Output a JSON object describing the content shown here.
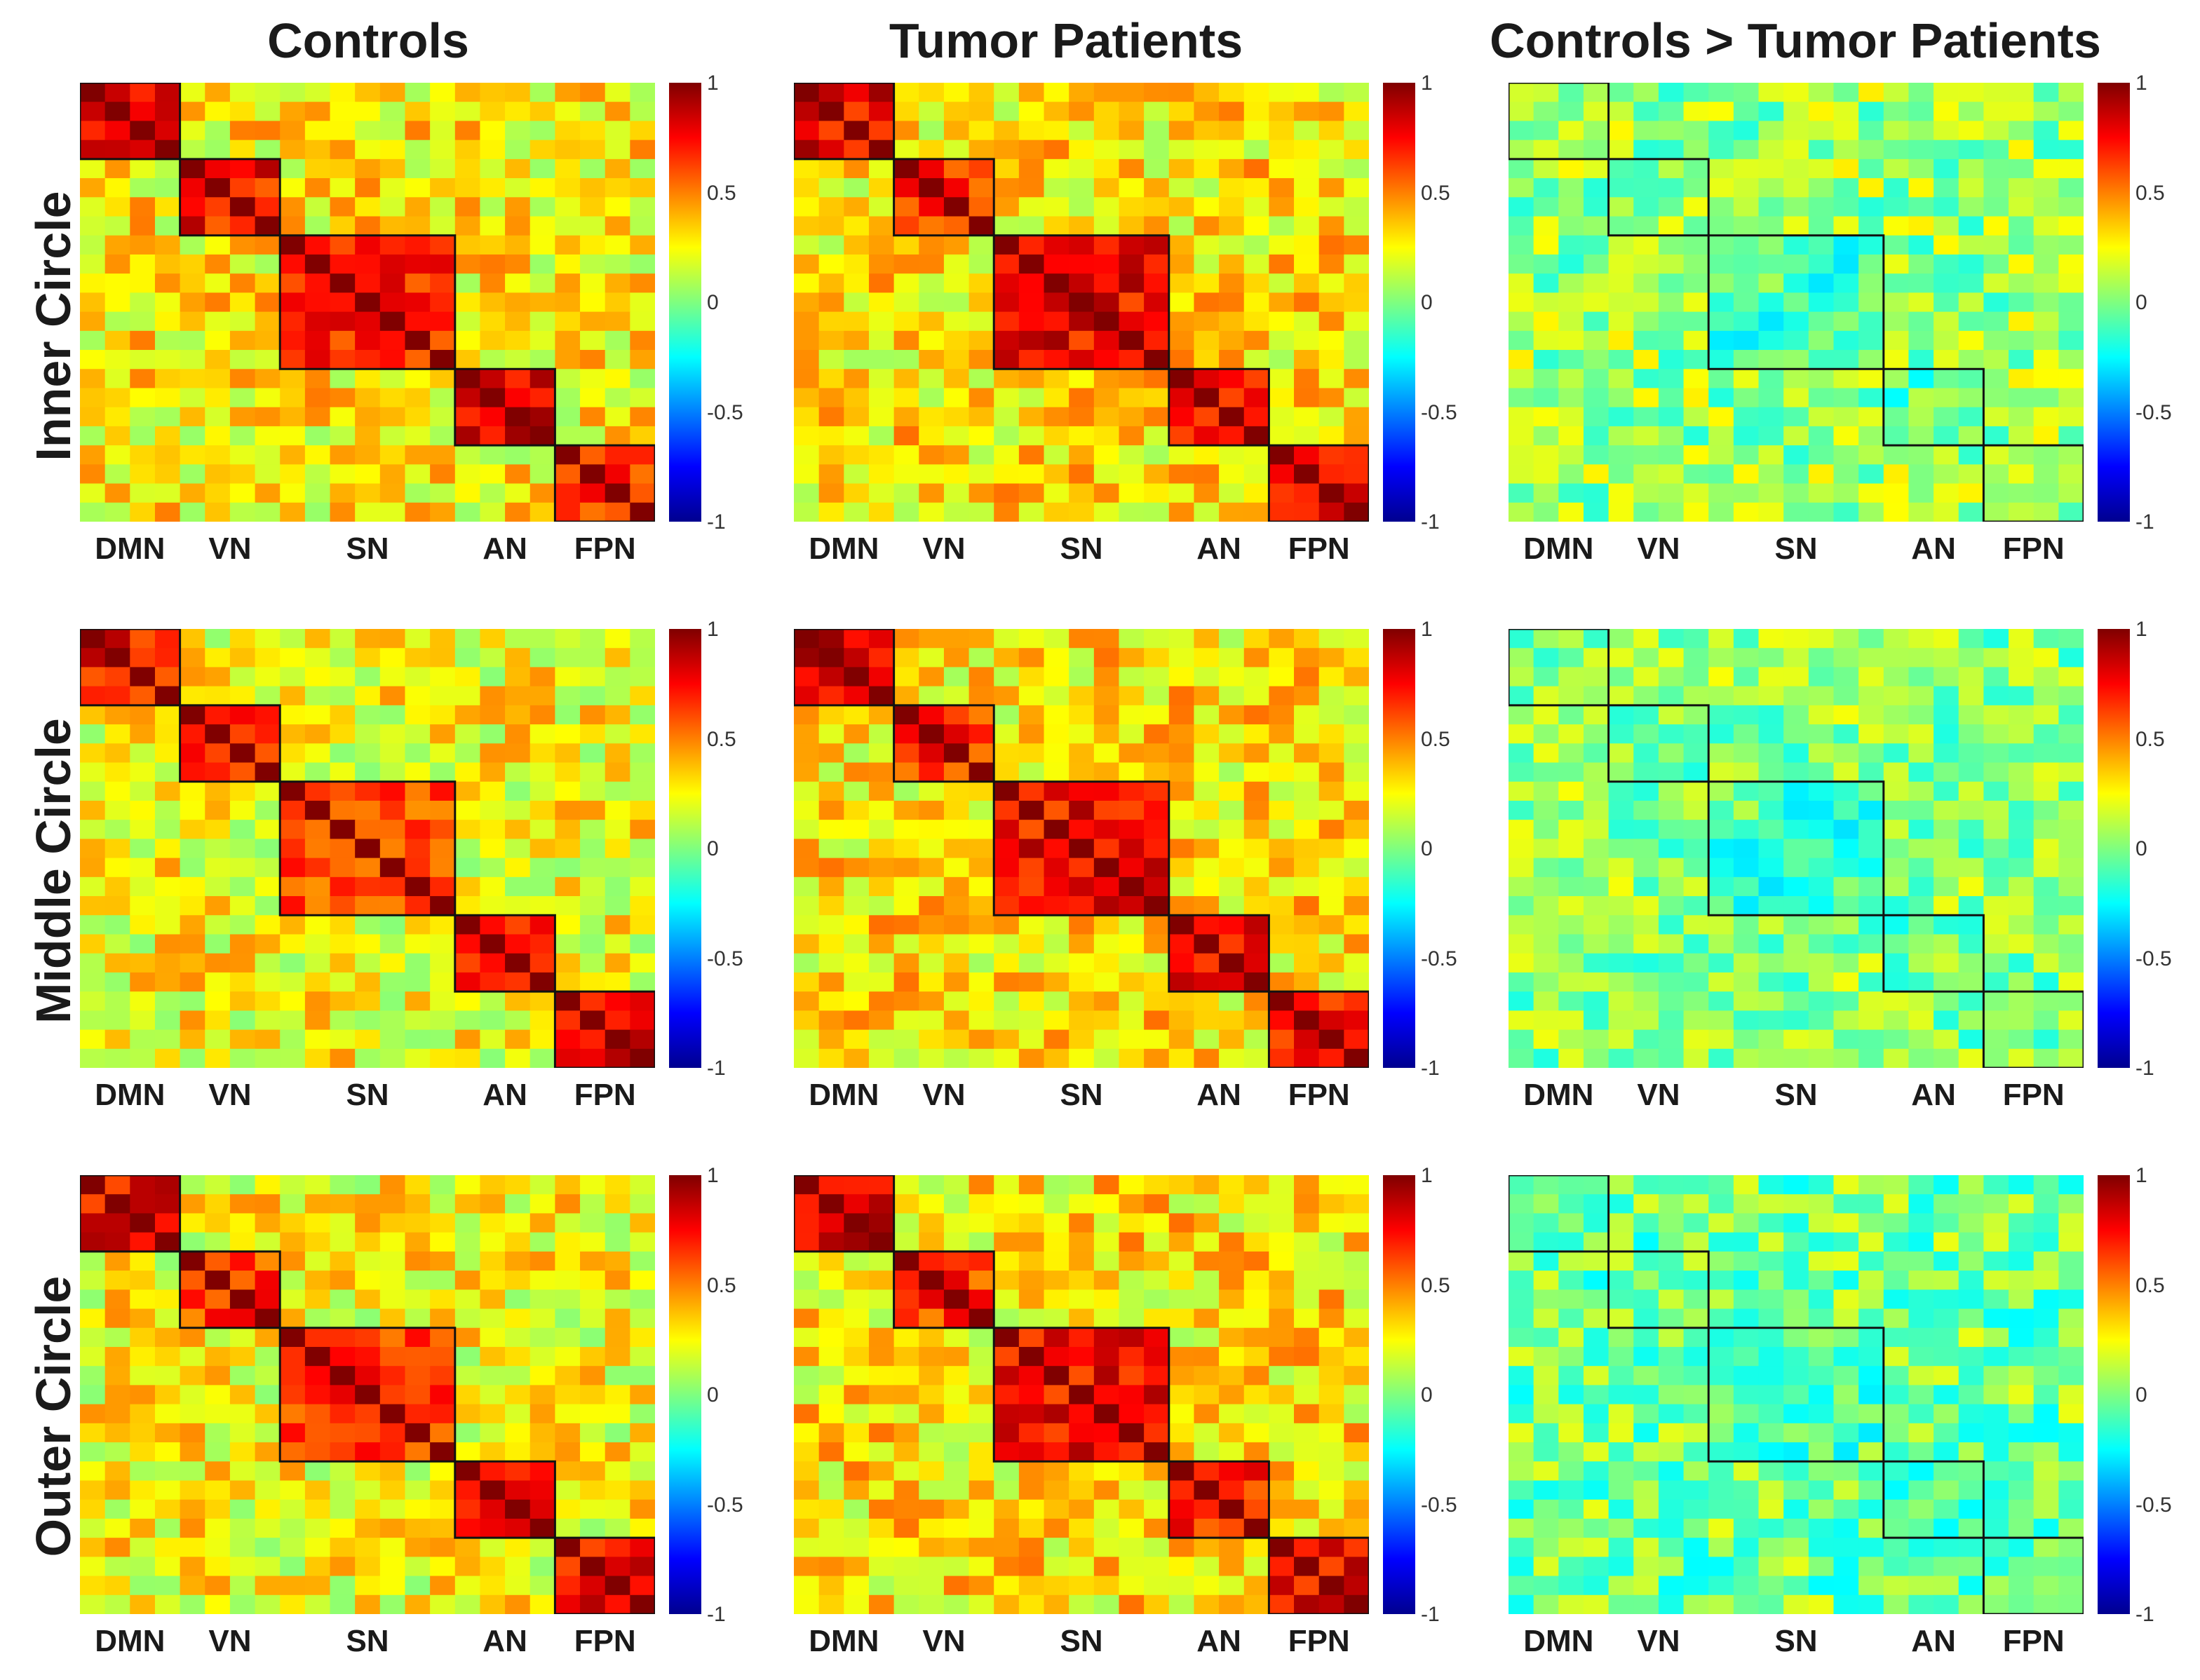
{
  "chart_data": {
    "type": "heatmap",
    "column_titles": [
      "Controls",
      "Tumor Patients",
      "Controls > Tumor Patients"
    ],
    "row_titles": [
      "Inner Circle",
      "Middle Circle",
      "Outer Circle"
    ],
    "networks": [
      {
        "name": "DMN",
        "size": 4
      },
      {
        "name": "VN",
        "size": 4
      },
      {
        "name": "SN",
        "size": 7
      },
      {
        "name": "AN",
        "size": 4
      },
      {
        "name": "FPN",
        "size": 4
      }
    ],
    "matrix_size": 23,
    "colorbar": {
      "min": -1,
      "max": 1,
      "ticks": [
        "1",
        "0.5",
        "0",
        "-0.5",
        "-1"
      ],
      "colormap": "jet"
    },
    "panels": [
      {
        "id": "inner-controls",
        "row": 0,
        "col": 0,
        "within": [
          0.78,
          0.72,
          0.68,
          0.78,
          0.62
        ],
        "between": 0.28,
        "noise": 0.18,
        "boxes": "block"
      },
      {
        "id": "inner-patients",
        "row": 0,
        "col": 1,
        "within": [
          0.78,
          0.62,
          0.76,
          0.74,
          0.72
        ],
        "between": 0.3,
        "noise": 0.18,
        "boxes": "block"
      },
      {
        "id": "inner-diff",
        "row": 0,
        "col": 2,
        "within": [
          0.05,
          0.05,
          -0.12,
          -0.08,
          0.15
        ],
        "between": 0.05,
        "noise": 0.18,
        "boxes": "step"
      },
      {
        "id": "middle-controls",
        "row": 1,
        "col": 0,
        "within": [
          0.74,
          0.7,
          0.64,
          0.7,
          0.76
        ],
        "between": 0.25,
        "noise": 0.18,
        "boxes": "block"
      },
      {
        "id": "middle-patients",
        "row": 1,
        "col": 1,
        "within": [
          0.78,
          0.66,
          0.76,
          0.7,
          0.74
        ],
        "between": 0.3,
        "noise": 0.18,
        "boxes": "block"
      },
      {
        "id": "middle-diff",
        "row": 1,
        "col": 2,
        "within": [
          0.02,
          0.0,
          -0.14,
          -0.05,
          0.02
        ],
        "between": 0.02,
        "noise": 0.17,
        "boxes": "step"
      },
      {
        "id": "outer-controls",
        "row": 2,
        "col": 0,
        "within": [
          0.74,
          0.62,
          0.68,
          0.72,
          0.76
        ],
        "between": 0.25,
        "noise": 0.18,
        "boxes": "block"
      },
      {
        "id": "outer-patients",
        "row": 2,
        "col": 1,
        "within": [
          0.8,
          0.64,
          0.76,
          0.7,
          0.74
        ],
        "between": 0.3,
        "noise": 0.18,
        "boxes": "block"
      },
      {
        "id": "outer-diff",
        "row": 2,
        "col": 2,
        "within": [
          -0.02,
          0.0,
          -0.12,
          -0.1,
          -0.05
        ],
        "between": -0.02,
        "noise": 0.18,
        "boxes": "step"
      }
    ]
  }
}
